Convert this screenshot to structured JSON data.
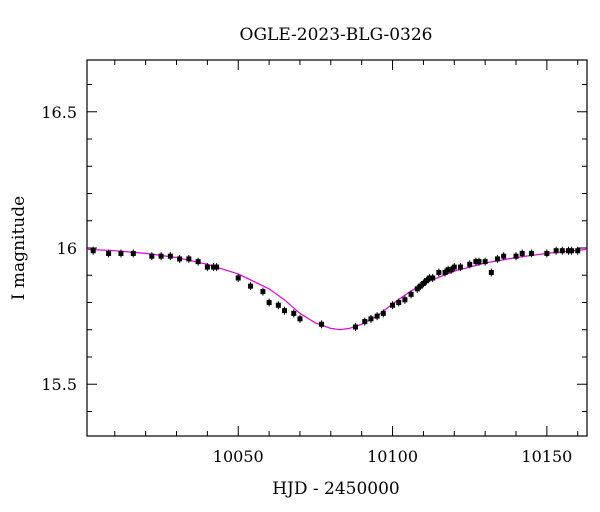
{
  "chart_data": {
    "type": "scatter",
    "title": "OGLE-2023-BLG-0326",
    "xlabel": "HJD - 2450000",
    "ylabel": "I magnitude",
    "xlim": [
      10001,
      10163
    ],
    "ylim": [
      16.69,
      15.31
    ],
    "y_inverted": true,
    "x_ticks": [
      10050,
      10100,
      10150
    ],
    "x_tick_labels": [
      "10050",
      "10100",
      "10150"
    ],
    "y_ticks": [
      15.5,
      16,
      16.5
    ],
    "y_tick_labels": [
      "15.5",
      "16",
      "16.5"
    ],
    "grid": false,
    "legend": "none",
    "colors": {
      "points": "#000000",
      "model": "#e000e0",
      "frame": "#000000"
    },
    "series": [
      {
        "type": "scatter",
        "x": [
          10003,
          10008,
          10012,
          10016,
          10022,
          10025,
          10028,
          10031,
          10034,
          10037,
          10040,
          10042,
          10043,
          10050,
          10054,
          10058,
          10060,
          10063,
          10065,
          10068,
          10070,
          10077,
          10088,
          10091,
          10093,
          10095,
          10097,
          10100,
          10102,
          10104,
          10106,
          10108,
          10109,
          10110,
          10111,
          10112,
          10113,
          10115,
          10117,
          10118,
          10119,
          10120,
          10122,
          10125,
          10127,
          10128,
          10130,
          10132,
          10134,
          10136,
          10140,
          10142,
          10145,
          10150,
          10153,
          10155,
          10157,
          10158,
          10160
        ],
        "y": [
          15.99,
          15.98,
          15.98,
          15.98,
          15.97,
          15.97,
          15.97,
          15.96,
          15.96,
          15.95,
          15.93,
          15.93,
          15.93,
          15.89,
          15.86,
          15.84,
          15.8,
          15.79,
          15.77,
          15.76,
          15.74,
          15.72,
          15.71,
          15.73,
          15.74,
          15.75,
          15.76,
          15.79,
          15.8,
          15.81,
          15.83,
          15.85,
          15.86,
          15.87,
          15.88,
          15.89,
          15.89,
          15.91,
          15.91,
          15.92,
          15.92,
          15.93,
          15.93,
          15.94,
          15.95,
          15.95,
          15.95,
          15.91,
          15.96,
          15.97,
          15.97,
          15.98,
          15.98,
          15.98,
          15.99,
          15.99,
          15.99,
          15.99,
          15.99
        ]
      },
      {
        "type": "line",
        "x": [
          10001,
          10010,
          10020,
          10030,
          10040,
          10050,
          10060,
          10065,
          10070,
          10075,
          10080,
          10083,
          10086,
          10090,
          10095,
          10100,
          10105,
          10110,
          10120,
          10130,
          10140,
          10150,
          10163
        ],
        "y": [
          15.995,
          15.99,
          15.98,
          15.965,
          15.94,
          15.905,
          15.85,
          15.81,
          15.76,
          15.725,
          15.705,
          15.7,
          15.705,
          15.72,
          15.75,
          15.795,
          15.835,
          15.87,
          15.915,
          15.945,
          15.965,
          15.98,
          15.995
        ]
      }
    ]
  }
}
